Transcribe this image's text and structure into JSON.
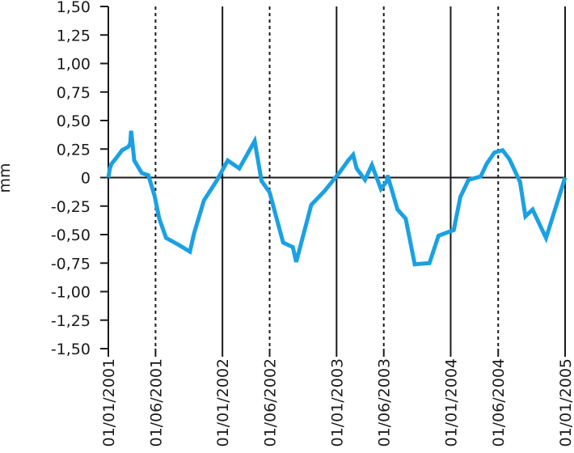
{
  "chart_data": {
    "type": "line",
    "title": "",
    "xlabel": "",
    "ylabel": "mm",
    "ylim": [
      -1.5,
      1.5
    ],
    "xlim": [
      "2001-01-01",
      "2005-01-01"
    ],
    "y_ticks": [
      1.5,
      1.25,
      1.0,
      0.75,
      0.5,
      0.25,
      0,
      -0.25,
      -0.5,
      -0.75,
      -1.0,
      -1.25,
      -1.5
    ],
    "y_tick_labels": [
      "1,50",
      "1,25",
      "1,00",
      "0,75",
      "0,50",
      "0,25",
      "0",
      "-0,25",
      "-0,50",
      "-0,75",
      "-1,00",
      "-1,25",
      "-1,50"
    ],
    "x_ticks": [
      {
        "date": "2001-01-01",
        "label": "01/01/2001",
        "line": "solid"
      },
      {
        "date": "2001-06-01",
        "label": "01/06/2001",
        "line": "dashed"
      },
      {
        "date": "2002-01-01",
        "label": "01/01/2002",
        "line": "solid"
      },
      {
        "date": "2002-06-01",
        "label": "01/06/2002",
        "line": "dashed"
      },
      {
        "date": "2003-01-01",
        "label": "01/01/2003",
        "line": "solid"
      },
      {
        "date": "2003-06-01",
        "label": "01/06/2003",
        "line": "dashed"
      },
      {
        "date": "2004-01-01",
        "label": "01/01/2004",
        "line": "solid"
      },
      {
        "date": "2004-06-01",
        "label": "01/06/2004",
        "line": "dashed"
      },
      {
        "date": "2005-01-01",
        "label": "01/01/2005",
        "line": "solid"
      }
    ],
    "series": [
      {
        "color": "#1ba1e2",
        "x": [
          "2001-01-01",
          "2001-01-06",
          "2001-01-11",
          "2001-01-26",
          "2001-02-14",
          "2001-03-06",
          "2001-03-12",
          "2001-03-15",
          "2001-03-25",
          "2001-04-18",
          "2001-05-09",
          "2001-05-29",
          "2001-06-13",
          "2001-07-05",
          "2001-08-14",
          "2001-09-19",
          "2001-10-02",
          "2001-11-03",
          "2001-12-13",
          "2002-01-18",
          "2002-02-24",
          "2002-04-14",
          "2002-05-06",
          "2002-06-01",
          "2002-07-14",
          "2002-08-14",
          "2002-08-25",
          "2002-10-12",
          "2002-11-23",
          "2003-01-12",
          "2003-02-07",
          "2003-02-23",
          "2003-03-06",
          "2003-04-02",
          "2003-04-24",
          "2003-05-23",
          "2003-06-11",
          "2003-06-13",
          "2003-07-15",
          "2003-08-10",
          "2003-09-08",
          "2003-10-25",
          "2003-11-23",
          "2004-01-11",
          "2004-02-01",
          "2004-02-27",
          "2004-04-06",
          "2004-04-25",
          "2004-05-20",
          "2004-06-15",
          "2004-07-07",
          "2004-08-10",
          "2004-08-27",
          "2004-09-19",
          "2004-11-01",
          "2005-01-01"
        ],
        "y": [
          0.0,
          0.08,
          0.12,
          0.17,
          0.24,
          0.27,
          0.3,
          0.41,
          0.15,
          0.04,
          0.02,
          -0.16,
          -0.36,
          -0.53,
          -0.59,
          -0.65,
          -0.49,
          -0.2,
          -0.03,
          0.15,
          0.08,
          0.32,
          -0.03,
          -0.13,
          -0.57,
          -0.61,
          -0.74,
          -0.24,
          -0.12,
          0.05,
          0.15,
          0.2,
          0.08,
          -0.02,
          0.11,
          -0.1,
          -0.03,
          0.02,
          -0.28,
          -0.36,
          -0.76,
          -0.75,
          -0.51,
          -0.46,
          -0.17,
          -0.02,
          0.01,
          0.12,
          0.22,
          0.24,
          0.16,
          -0.04,
          -0.34,
          -0.28,
          -0.53,
          0.0
        ]
      }
    ],
    "grid": false
  }
}
